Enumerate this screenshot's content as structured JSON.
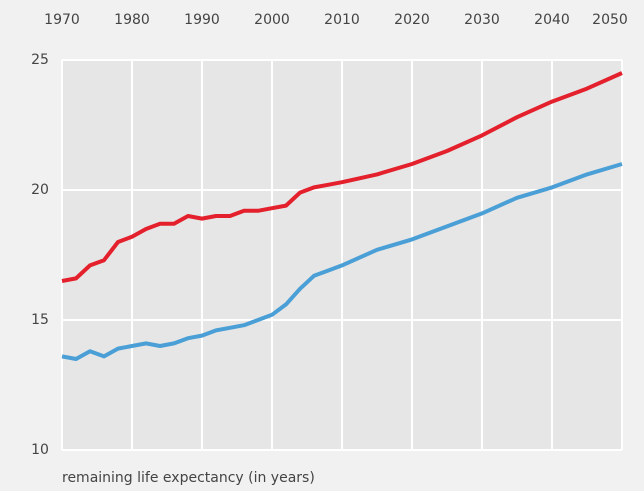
{
  "chart_data": {
    "type": "line",
    "ylabel": "remaining life expectancy (in years)",
    "x": [
      1970,
      1972,
      1974,
      1976,
      1978,
      1980,
      1982,
      1984,
      1986,
      1988,
      1990,
      1992,
      1994,
      1996,
      1998,
      2000,
      2002,
      2004,
      2006,
      2008,
      2010,
      2015,
      2020,
      2025,
      2030,
      2035,
      2040,
      2045,
      2050
    ],
    "series": [
      {
        "color": "#e3202b",
        "values": [
          16.5,
          16.6,
          17.1,
          17.3,
          18.0,
          18.2,
          18.5,
          18.7,
          18.7,
          19.0,
          18.9,
          19.0,
          19.0,
          19.2,
          19.2,
          19.3,
          19.4,
          19.9,
          20.1,
          20.2,
          20.3,
          20.6,
          21.0,
          21.5,
          22.1,
          22.8,
          23.4,
          23.9,
          24.5
        ]
      },
      {
        "color": "#4a9fd6",
        "values": [
          13.6,
          13.5,
          13.8,
          13.6,
          13.9,
          14.0,
          14.1,
          14.0,
          14.1,
          14.3,
          14.4,
          14.6,
          14.7,
          14.8,
          15.0,
          15.2,
          15.6,
          16.2,
          16.7,
          16.9,
          17.1,
          17.7,
          18.1,
          18.6,
          19.1,
          19.7,
          20.1,
          20.6,
          21.0
        ]
      }
    ],
    "xlim": [
      1970,
      2050
    ],
    "xticks": [
      1970,
      1980,
      1990,
      2000,
      2010,
      2020,
      2030,
      2040,
      2050
    ],
    "ylim": [
      10,
      25
    ],
    "yticks": [
      10,
      15,
      20,
      25
    ],
    "grid": true
  }
}
